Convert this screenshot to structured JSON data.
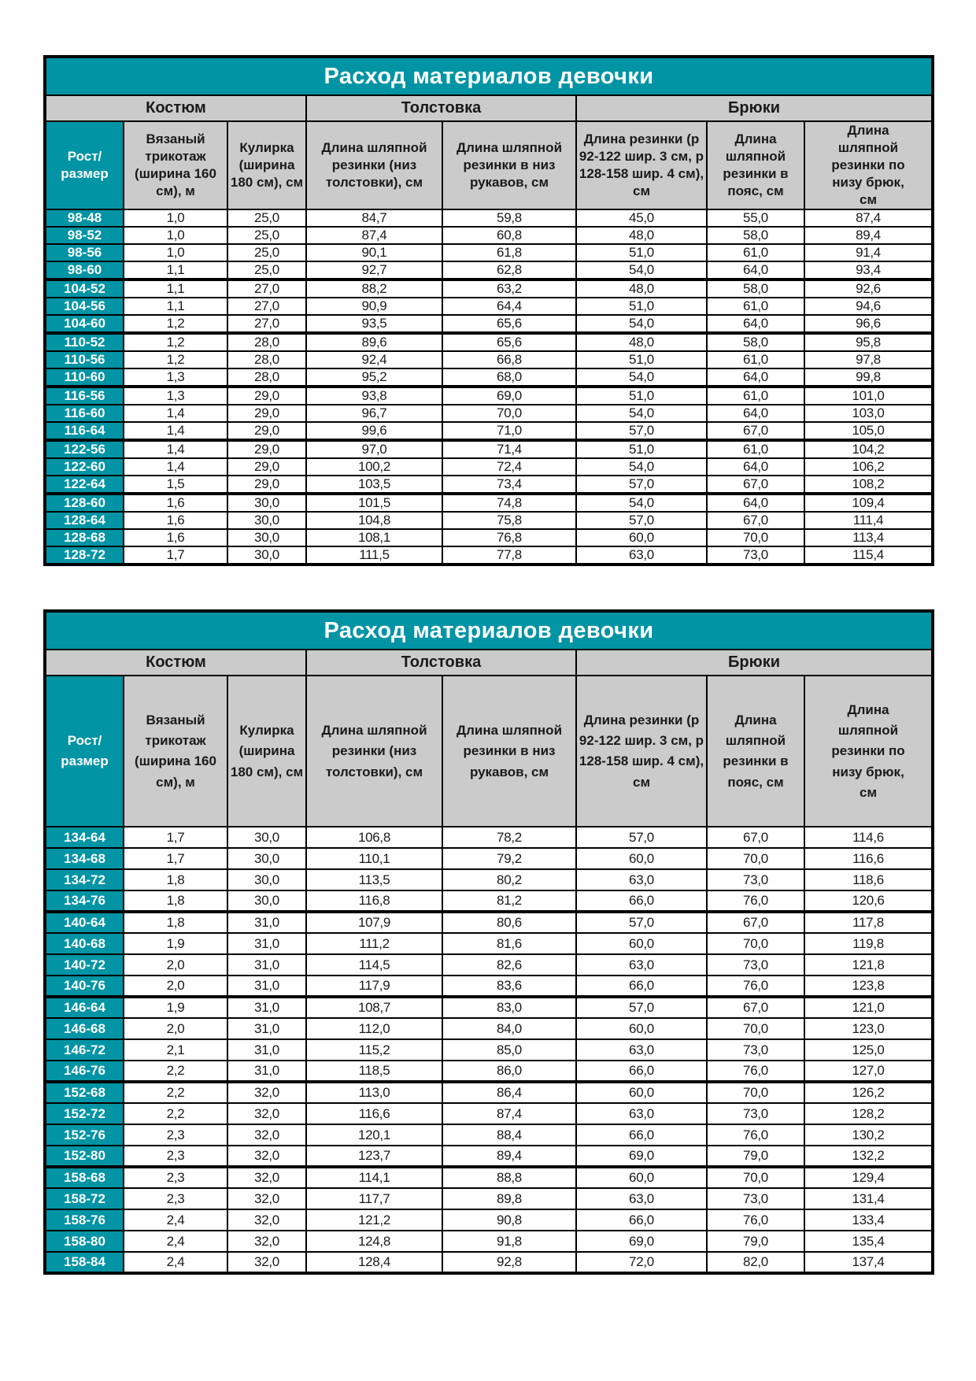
{
  "colors": {
    "teal_accent": "#0094a4",
    "header_gray": "#cbcbcb",
    "border_black": "#000000",
    "title_text": "#ffffff",
    "body_text": "#1a1a1a"
  },
  "group_headers": [
    "Костюм",
    "Толстовка",
    "Брюки"
  ],
  "columns": [
    "Рост/\nразмер",
    "Вязаный трикотаж (ширина 160 см), м",
    "Кулирка (ширина 180 см), см",
    "Длина шляпной резинки (низ толстовки), см",
    "Длина шляпной резинки в низ рукавов, см",
    "Длина резинки (р 92-122 шир. 3 см, р 128-158 шир. 4 см), см",
    "Длина шляпной резинки в пояс, см",
    "Длина шляпной резинки по низу брюк, см"
  ],
  "table1": {
    "title": "Расход материалов девочки",
    "rows": [
      [
        "98-48",
        "1,0",
        "25,0",
        "84,7",
        "59,8",
        "45,0",
        "55,0",
        "87,4"
      ],
      [
        "98-52",
        "1,0",
        "25,0",
        "87,4",
        "60,8",
        "48,0",
        "58,0",
        "89,4"
      ],
      [
        "98-56",
        "1,0",
        "25,0",
        "90,1",
        "61,8",
        "51,0",
        "61,0",
        "91,4"
      ],
      [
        "98-60",
        "1,1",
        "25,0",
        "92,7",
        "62,8",
        "54,0",
        "64,0",
        "93,4"
      ],
      [
        "104-52",
        "1,1",
        "27,0",
        "88,2",
        "63,2",
        "48,0",
        "58,0",
        "92,6"
      ],
      [
        "104-56",
        "1,1",
        "27,0",
        "90,9",
        "64,4",
        "51,0",
        "61,0",
        "94,6"
      ],
      [
        "104-60",
        "1,2",
        "27,0",
        "93,5",
        "65,6",
        "54,0",
        "64,0",
        "96,6"
      ],
      [
        "110-52",
        "1,2",
        "28,0",
        "89,6",
        "65,6",
        "48,0",
        "58,0",
        "95,8"
      ],
      [
        "110-56",
        "1,2",
        "28,0",
        "92,4",
        "66,8",
        "51,0",
        "61,0",
        "97,8"
      ],
      [
        "110-60",
        "1,3",
        "28,0",
        "95,2",
        "68,0",
        "54,0",
        "64,0",
        "99,8"
      ],
      [
        "116-56",
        "1,3",
        "29,0",
        "93,8",
        "69,0",
        "51,0",
        "61,0",
        "101,0"
      ],
      [
        "116-60",
        "1,4",
        "29,0",
        "96,7",
        "70,0",
        "54,0",
        "64,0",
        "103,0"
      ],
      [
        "116-64",
        "1,4",
        "29,0",
        "99,6",
        "71,0",
        "57,0",
        "67,0",
        "105,0"
      ],
      [
        "122-56",
        "1,4",
        "29,0",
        "97,0",
        "71,4",
        "51,0",
        "61,0",
        "104,2"
      ],
      [
        "122-60",
        "1,4",
        "29,0",
        "100,2",
        "72,4",
        "54,0",
        "64,0",
        "106,2"
      ],
      [
        "122-64",
        "1,5",
        "29,0",
        "103,5",
        "73,4",
        "57,0",
        "67,0",
        "108,2"
      ],
      [
        "128-60",
        "1,6",
        "30,0",
        "101,5",
        "74,8",
        "54,0",
        "64,0",
        "109,4"
      ],
      [
        "128-64",
        "1,6",
        "30,0",
        "104,8",
        "75,8",
        "57,0",
        "67,0",
        "111,4"
      ],
      [
        "128-68",
        "1,6",
        "30,0",
        "108,1",
        "76,8",
        "60,0",
        "70,0",
        "113,4"
      ],
      [
        "128-72",
        "1,7",
        "30,0",
        "111,5",
        "77,8",
        "63,0",
        "73,0",
        "115,4"
      ]
    ]
  },
  "table2": {
    "title": "Расход материалов девочки",
    "rows": [
      [
        "134-64",
        "1,7",
        "30,0",
        "106,8",
        "78,2",
        "57,0",
        "67,0",
        "114,6"
      ],
      [
        "134-68",
        "1,7",
        "30,0",
        "110,1",
        "79,2",
        "60,0",
        "70,0",
        "116,6"
      ],
      [
        "134-72",
        "1,8",
        "30,0",
        "113,5",
        "80,2",
        "63,0",
        "73,0",
        "118,6"
      ],
      [
        "134-76",
        "1,8",
        "30,0",
        "116,8",
        "81,2",
        "66,0",
        "76,0",
        "120,6"
      ],
      [
        "140-64",
        "1,8",
        "31,0",
        "107,9",
        "80,6",
        "57,0",
        "67,0",
        "117,8"
      ],
      [
        "140-68",
        "1,9",
        "31,0",
        "111,2",
        "81,6",
        "60,0",
        "70,0",
        "119,8"
      ],
      [
        "140-72",
        "2,0",
        "31,0",
        "114,5",
        "82,6",
        "63,0",
        "73,0",
        "121,8"
      ],
      [
        "140-76",
        "2,0",
        "31,0",
        "117,9",
        "83,6",
        "66,0",
        "76,0",
        "123,8"
      ],
      [
        "146-64",
        "1,9",
        "31,0",
        "108,7",
        "83,0",
        "57,0",
        "67,0",
        "121,0"
      ],
      [
        "146-68",
        "2,0",
        "31,0",
        "112,0",
        "84,0",
        "60,0",
        "70,0",
        "123,0"
      ],
      [
        "146-72",
        "2,1",
        "31,0",
        "115,2",
        "85,0",
        "63,0",
        "73,0",
        "125,0"
      ],
      [
        "146-76",
        "2,2",
        "31,0",
        "118,5",
        "86,0",
        "66,0",
        "76,0",
        "127,0"
      ],
      [
        "152-68",
        "2,2",
        "32,0",
        "113,0",
        "86,4",
        "60,0",
        "70,0",
        "126,2"
      ],
      [
        "152-72",
        "2,2",
        "32,0",
        "116,6",
        "87,4",
        "63,0",
        "73,0",
        "128,2"
      ],
      [
        "152-76",
        "2,3",
        "32,0",
        "120,1",
        "88,4",
        "66,0",
        "76,0",
        "130,2"
      ],
      [
        "152-80",
        "2,3",
        "32,0",
        "123,7",
        "89,4",
        "69,0",
        "79,0",
        "132,2"
      ],
      [
        "158-68",
        "2,3",
        "32,0",
        "114,1",
        "88,8",
        "60,0",
        "70,0",
        "129,4"
      ],
      [
        "158-72",
        "2,3",
        "32,0",
        "117,7",
        "89,8",
        "63,0",
        "73,0",
        "131,4"
      ],
      [
        "158-76",
        "2,4",
        "32,0",
        "121,2",
        "90,8",
        "66,0",
        "76,0",
        "133,4"
      ],
      [
        "158-80",
        "2,4",
        "32,0",
        "124,8",
        "91,8",
        "69,0",
        "79,0",
        "135,4"
      ],
      [
        "158-84",
        "2,4",
        "32,0",
        "128,4",
        "92,8",
        "72,0",
        "82,0",
        "137,4"
      ]
    ]
  }
}
